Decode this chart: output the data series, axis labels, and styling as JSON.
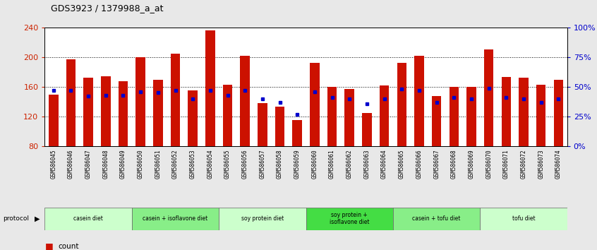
{
  "title": "GDS3923 / 1379988_a_at",
  "samples": [
    "GSM586045",
    "GSM586046",
    "GSM586047",
    "GSM586048",
    "GSM586049",
    "GSM586050",
    "GSM586051",
    "GSM586052",
    "GSM586053",
    "GSM586054",
    "GSM586055",
    "GSM586056",
    "GSM586057",
    "GSM586058",
    "GSM586059",
    "GSM586060",
    "GSM586061",
    "GSM586062",
    "GSM586063",
    "GSM586064",
    "GSM586065",
    "GSM586066",
    "GSM586067",
    "GSM586068",
    "GSM586069",
    "GSM586070",
    "GSM586071",
    "GSM586072",
    "GSM586073",
    "GSM586074"
  ],
  "counts": [
    150,
    197,
    172,
    174,
    168,
    200,
    170,
    205,
    155,
    236,
    163,
    202,
    138,
    133,
    115,
    192,
    160,
    157,
    125,
    162,
    192,
    202,
    148,
    160,
    160,
    210,
    173,
    172,
    163,
    170
  ],
  "percentile_ranks": [
    47,
    47,
    42,
    43,
    43,
    46,
    45,
    47,
    40,
    47,
    43,
    47,
    40,
    37,
    27,
    46,
    41,
    40,
    36,
    40,
    48,
    47,
    37,
    41,
    40,
    49,
    41,
    40,
    37,
    40
  ],
  "groups": [
    {
      "label": "casein diet",
      "start": 0,
      "end": 5,
      "color": "#ccffcc"
    },
    {
      "label": "casein + isoflavone diet",
      "start": 5,
      "end": 10,
      "color": "#88ee88"
    },
    {
      "label": "soy protein diet",
      "start": 10,
      "end": 15,
      "color": "#ccffcc"
    },
    {
      "label": "soy protein +\nisoflavone diet",
      "start": 15,
      "end": 20,
      "color": "#44dd44"
    },
    {
      "label": "casein + tofu diet",
      "start": 20,
      "end": 25,
      "color": "#88ee88"
    },
    {
      "label": "tofu diet",
      "start": 25,
      "end": 30,
      "color": "#ccffcc"
    }
  ],
  "ymin": 80,
  "ymax": 240,
  "bar_color": "#cc1100",
  "marker_color": "#0000cc",
  "left_axis_color": "#cc2200",
  "right_axis_color": "#0000cc",
  "fig_bg": "#e8e8e8",
  "plot_bg": "#ffffff",
  "xtick_bg": "#d8d8d8"
}
